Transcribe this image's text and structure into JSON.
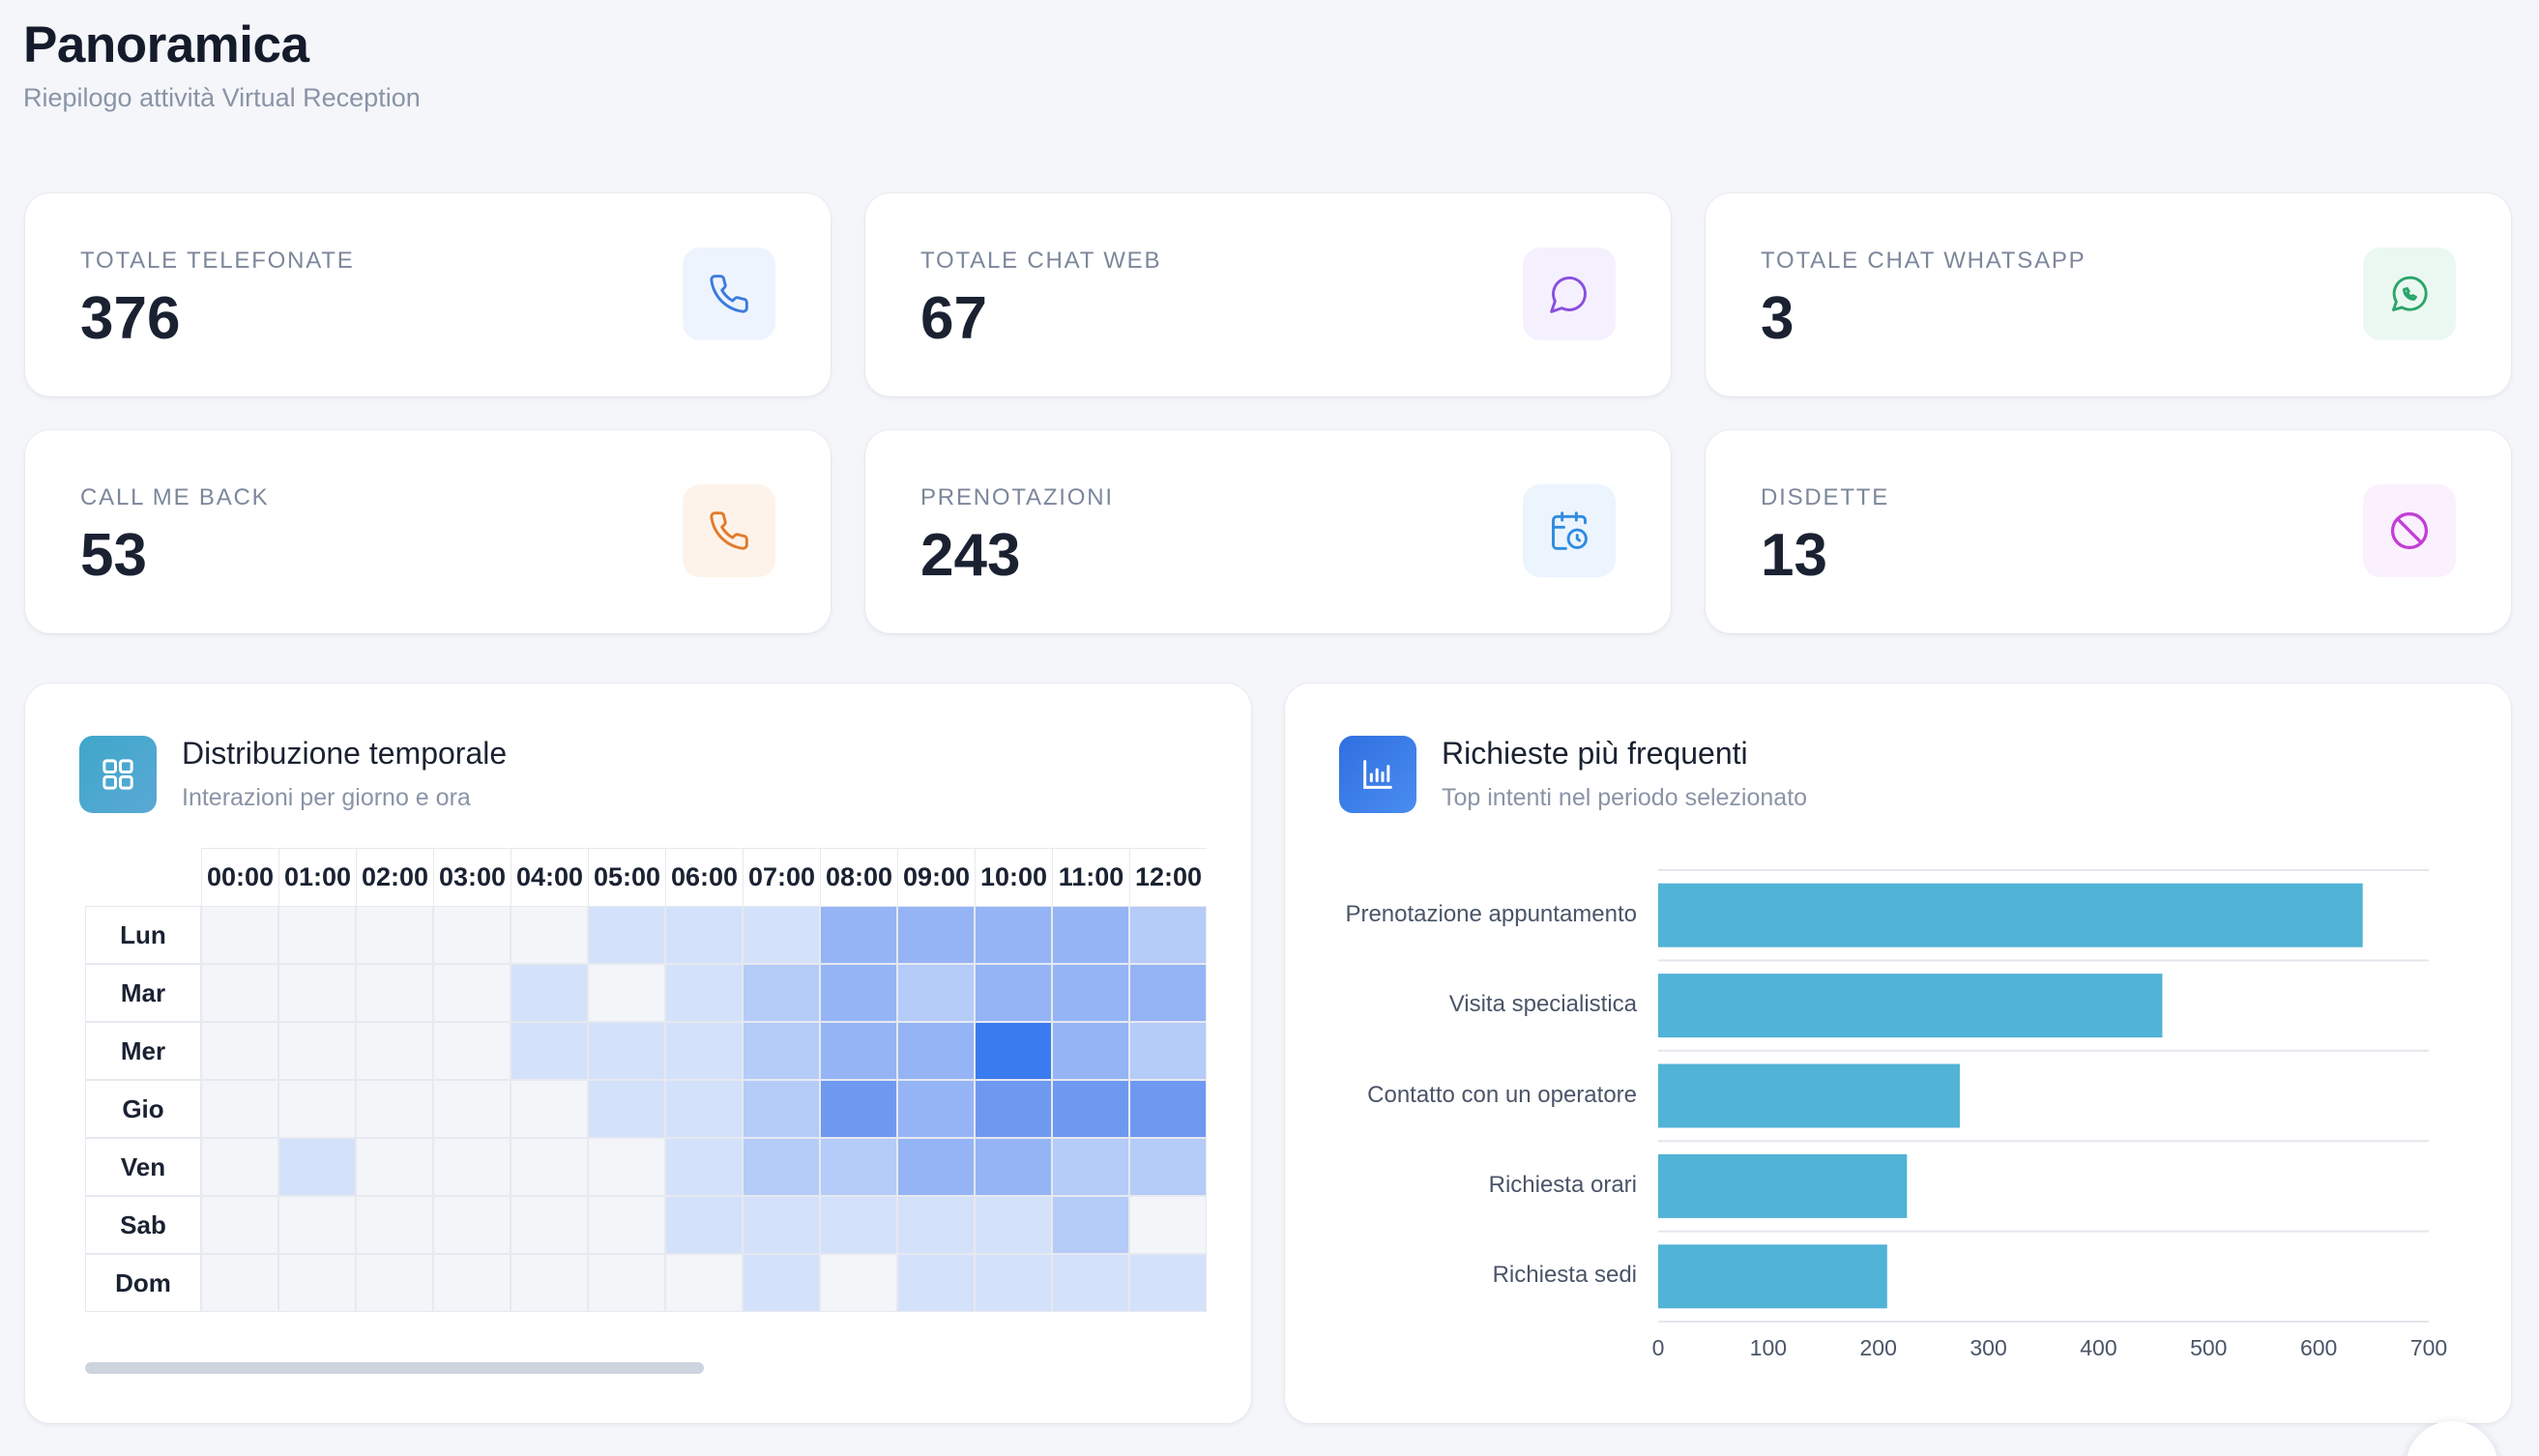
{
  "header": {
    "title": "Panoramica",
    "subtitle": "Riepilogo attività Virtual Reception"
  },
  "stats": [
    {
      "label": "TOTALE TELEFONATE",
      "value": "376",
      "icon": "phone-icon",
      "icon_color": "#3b7be0",
      "icon_bg": "#eef4fd"
    },
    {
      "label": "TOTALE CHAT WEB",
      "value": "67",
      "icon": "chat-bubble-icon",
      "icon_color": "#8a4fe0",
      "icon_bg": "#f5f0fd"
    },
    {
      "label": "TOTALE CHAT WHATSAPP",
      "value": "3",
      "icon": "whatsapp-icon",
      "icon_color": "#2aa56a",
      "icon_bg": "#ebf8f1"
    },
    {
      "label": "CALL ME BACK",
      "value": "53",
      "icon": "phone-callback-icon",
      "icon_color": "#e27a2a",
      "icon_bg": "#fdf3ea"
    },
    {
      "label": "PRENOTAZIONI",
      "value": "243",
      "icon": "calendar-clock-icon",
      "icon_color": "#2f8be0",
      "icon_bg": "#ecf4fd"
    },
    {
      "label": "DISDETTE",
      "value": "13",
      "icon": "ban-icon",
      "icon_color": "#c23ed6",
      "icon_bg": "#fbf0fd"
    }
  ],
  "heatmap_panel": {
    "title": "Distribuzione temporale",
    "subtitle": "Interazioni per giorno e ora",
    "icon": "grid-icon",
    "icon_gradient": [
      "#3fa7c9",
      "#5aa8d6"
    ]
  },
  "intents_panel": {
    "title": "Richieste più frequenti",
    "subtitle": "Top intenti nel periodo selezionato",
    "icon": "bar-chart-icon",
    "icon_gradient": [
      "#2f6fe0",
      "#4a8df0"
    ]
  },
  "heatmap": {
    "hours": [
      "00:00",
      "01:00",
      "02:00",
      "03:00",
      "04:00",
      "05:00",
      "06:00",
      "07:00",
      "08:00",
      "09:00",
      "10:00",
      "11:00",
      "12:00"
    ],
    "days": [
      "Lun",
      "Mar",
      "Mer",
      "Gio",
      "Ven",
      "Sab",
      "Dom"
    ],
    "levels": [
      [
        0,
        0,
        0,
        0,
        0,
        1,
        1,
        1,
        3,
        3,
        3,
        3,
        2
      ],
      [
        0,
        0,
        0,
        0,
        1,
        0,
        1,
        2,
        3,
        2,
        3,
        3,
        3
      ],
      [
        0,
        0,
        0,
        0,
        1,
        1,
        1,
        2,
        3,
        3,
        5,
        3,
        2
      ],
      [
        0,
        0,
        0,
        0,
        0,
        1,
        1,
        2,
        4,
        3,
        4,
        4,
        4
      ],
      [
        0,
        1,
        0,
        0,
        0,
        0,
        1,
        2,
        2,
        3,
        3,
        2,
        2
      ],
      [
        0,
        0,
        0,
        0,
        0,
        0,
        1,
        1,
        1,
        1,
        1,
        2,
        0
      ],
      [
        0,
        0,
        0,
        0,
        0,
        0,
        0,
        1,
        0,
        1,
        1,
        1,
        1
      ]
    ],
    "level_colors": [
      "#f4f5f8",
      "#d4e1fb",
      "#b5cbf8",
      "#95b4f5",
      "#6f99f1",
      "#3a7bf0"
    ]
  },
  "chart_data": {
    "type": "bar",
    "orientation": "horizontal",
    "categories": [
      "Prenotazione appuntamento",
      "Visita specialistica",
      "Contatto con un operatore",
      "Richiesta orari",
      "Richiesta sedi"
    ],
    "values": [
      640,
      458,
      274,
      226,
      208
    ],
    "xlim": [
      0,
      700
    ],
    "xticks": [
      "0",
      "100",
      "200",
      "300",
      "400",
      "500",
      "600",
      "700"
    ],
    "bar_color": "#51b3d6",
    "grid": true,
    "title": "",
    "xlabel": "",
    "ylabel": ""
  },
  "help_button": {
    "icon": "help-icon"
  }
}
